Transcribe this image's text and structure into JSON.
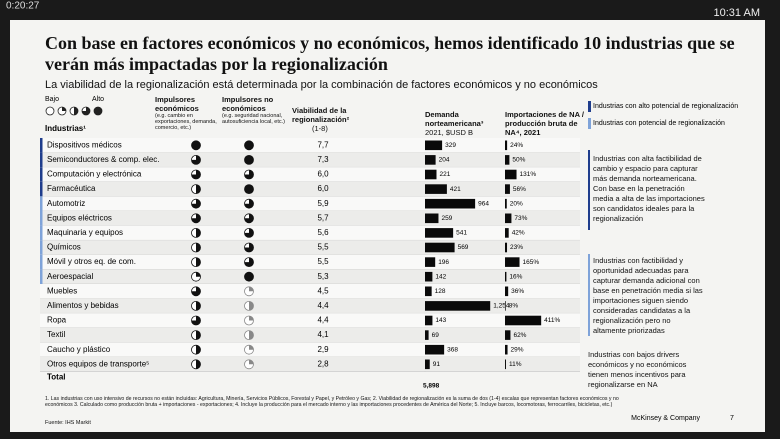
{
  "status_bar": {
    "left": "0:20:27",
    "right": "10:31 AM"
  },
  "slide": {
    "title": "Con base en factores económicos y no económicos, hemos identificado 10 industrias que se verán más impactadas por la regionalización",
    "subtitle": "La viabilidad de la regionalización está determinada por la combinación de factores económicos y no económicos",
    "scale_low": "Bajo",
    "scale_high": "Alto",
    "headers": {
      "industry": "Industrias¹",
      "econ": "Impulsores económicos",
      "econ_note": "(e.g. cambio en exportaciones, demanda, comercio, etc.)",
      "nonecon": "Impulsores no económicos",
      "nonecon_note": "(e.g. seguridad nacional, autosuficiencia local, etc.)",
      "viability": "Viabilidad de la regionalización²",
      "viability_note": "(1-8)",
      "demand": "Demanda norteamericana³",
      "demand_note": "2021, $USD B",
      "imports": "Importaciones de NA / producción bruta de NA⁴, 2021"
    },
    "legend": [
      "Industrias con alto potencial de regionalización",
      "Industrias con potencial de regionalización"
    ],
    "rows": [
      {
        "name": "Dispositivos médicos",
        "econ": 4,
        "nonecon": 4,
        "viability": "7,7",
        "demand": 329,
        "imports": 24,
        "imports_label": "24%"
      },
      {
        "name": "Semiconductores & comp. elec.",
        "econ": 3,
        "nonecon": 4,
        "viability": "7,3",
        "demand": 204,
        "imports": 50,
        "imports_label": "50%"
      },
      {
        "name": "Computación y electrónica",
        "econ": 3,
        "nonecon": 3,
        "viability": "6,0",
        "demand": 221,
        "imports": 131,
        "imports_label": "131%"
      },
      {
        "name": "Farmacéutica",
        "econ": 2,
        "nonecon": 4,
        "viability": "6,0",
        "demand": 421,
        "imports": 56,
        "imports_label": "56%"
      },
      {
        "name": "Automotriz",
        "econ": 3,
        "nonecon": 3,
        "viability": "5,9",
        "demand": 964,
        "imports": 20,
        "imports_label": "20%"
      },
      {
        "name": "Equipos eléctricos",
        "econ": 3,
        "nonecon": 3,
        "viability": "5,7",
        "demand": 259,
        "imports": 73,
        "imports_label": "73%"
      },
      {
        "name": "Maquinaria y equipos",
        "econ": 2,
        "nonecon": 3,
        "viability": "5,6",
        "demand": 541,
        "imports": 42,
        "imports_label": "42%"
      },
      {
        "name": "Químicos",
        "econ": 2,
        "nonecon": 3,
        "viability": "5,5",
        "demand": 569,
        "imports": 23,
        "imports_label": "23%"
      },
      {
        "name": "Móvil y otros eq. de com.",
        "econ": 2,
        "nonecon": 3,
        "viability": "5,5",
        "demand": 196,
        "imports": 165,
        "imports_label": "165%"
      },
      {
        "name": "Aeroespacial",
        "econ": 1,
        "nonecon": 4,
        "viability": "5,3",
        "demand": 142,
        "imports": 16,
        "imports_label": "16%"
      },
      {
        "name": "Muebles",
        "econ": 3,
        "nonecon": 1,
        "viability": "4,5",
        "demand": 128,
        "imports": 36,
        "imports_label": "36%"
      },
      {
        "name": "Alimentos y bebidas",
        "econ": 2,
        "nonecon": 2,
        "viability": "4,4",
        "demand": 1254,
        "demand_label": "1,254",
        "imports": 8,
        "imports_label": "8%"
      },
      {
        "name": "Ropa",
        "econ": 3,
        "nonecon": 1,
        "viability": "4,4",
        "demand": 143,
        "imports": 411,
        "imports_label": "411%"
      },
      {
        "name": "Textil",
        "econ": 2,
        "nonecon": 2,
        "viability": "4,1",
        "demand": 69,
        "imports": 62,
        "imports_label": "62%"
      },
      {
        "name": "Caucho y plástico",
        "econ": 2,
        "nonecon": 1,
        "viability": "2,9",
        "demand": 368,
        "imports": 29,
        "imports_label": "29%"
      },
      {
        "name": "Otros equipos de transporte⁵",
        "econ": 2,
        "nonecon": 1,
        "viability": "2,8",
        "demand": 91,
        "imports": 11,
        "imports_label": "11%"
      }
    ],
    "total_label": "Total",
    "total_demand": "5,898",
    "notes": [
      "Industrias con alta factibilidad de cambio y espacio para capturar más demanda norteamericana. Con base en la penetración media a alta de las importaciones son candidatos ideales para la regionalización",
      "Industrias con factibilidad y oportunidad adecuadas para capturar demanda adicional con base en penetración media si las importaciones siguen siendo consideradas candidatas a la regionalización pero no altamente priorizadas",
      "Industrias con bajos drivers económicos y no económicos tienen menos incentivos para regionalizarse en NA"
    ],
    "footnote": "1. Las industrias con uso intensivo de recursos no están incluidas: Agricultura, Minería, Servicios Públicos, Forestal y Papel, y Petróleo y Gas; 2. Viabilidad de regionalización es la suma de dos (1-4) escalas que representan factores económicos y no económicos 3. Calculado como producción bruta + importaciones - exportaciones; 4. Incluye la producción para el mercado interno y las importaciones procedentes de América del Norte; 5. Incluye barcos, locomotoras, ferrocarriles, bicicletas, etc.)",
    "source": "Fuente: IHS Markit",
    "brand": "McKinsey & Company",
    "page": "7"
  }
}
